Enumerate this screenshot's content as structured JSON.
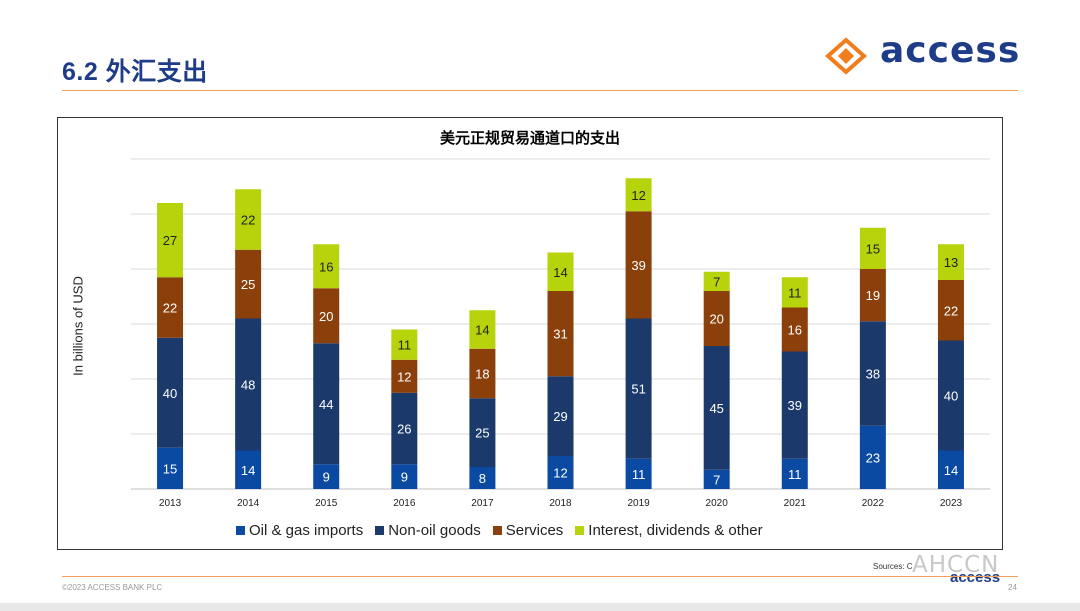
{
  "slide": {
    "title": "6.2 外汇支出",
    "logo_text": "access",
    "sources": "Sources: C",
    "copyright": "©2023 ACCESS BANK PLC",
    "page_number": "24",
    "footer_logo": "access",
    "watermark": "AHCCN"
  },
  "colors": {
    "accent_orange": "#f5a05a",
    "brand_blue": "#1f3c88",
    "oil_gas": "#0b4aa2",
    "non_oil": "#1b3a6b",
    "services": "#8b3f0a",
    "interest": "#b6d30c"
  },
  "chart_data": {
    "type": "bar",
    "stacked": true,
    "title": "美元正规贸易通道口的支出",
    "xlabel": "",
    "ylabel": "In billions of USD",
    "ylim": [
      0,
      120
    ],
    "grid": true,
    "legend_position": "bottom",
    "categories": [
      "2013",
      "2014",
      "2015",
      "2016",
      "2017",
      "2018",
      "2019",
      "2020",
      "2021",
      "2022",
      "2023"
    ],
    "series": [
      {
        "name": "Oil & gas imports",
        "color": "#0b4aa2",
        "values": [
          15,
          14,
          9,
          9,
          8,
          12,
          11,
          7,
          11,
          23,
          14
        ]
      },
      {
        "name": "Non-oil goods",
        "color": "#1b3a6b",
        "values": [
          40,
          48,
          44,
          26,
          25,
          29,
          51,
          45,
          39,
          38,
          40
        ]
      },
      {
        "name": "Services",
        "color": "#8b3f0a",
        "values": [
          22,
          25,
          20,
          12,
          18,
          31,
          39,
          20,
          16,
          19,
          22
        ]
      },
      {
        "name": "Interest, dividends & other",
        "color": "#b6d30c",
        "values": [
          27,
          22,
          16,
          11,
          14,
          14,
          12,
          7,
          11,
          15,
          13
        ]
      }
    ]
  }
}
